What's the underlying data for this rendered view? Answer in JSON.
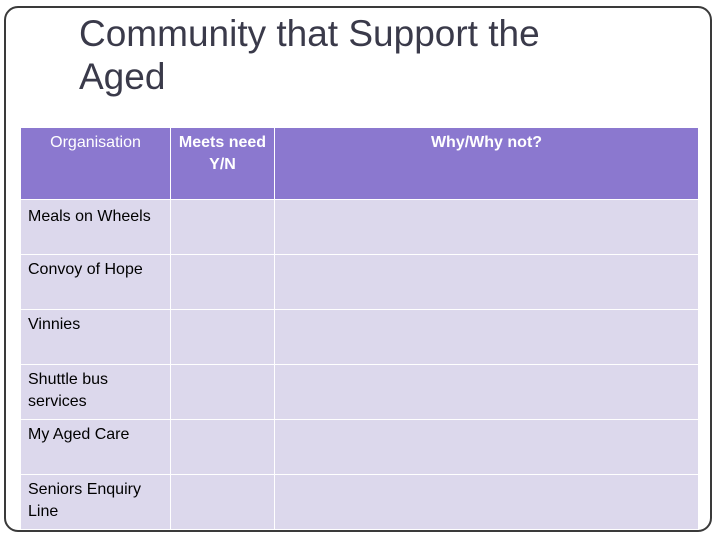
{
  "title": {
    "line1": "Community that Support the",
    "line2": "Aged"
  },
  "table": {
    "headers": [
      "Organisation",
      "Meets need Y/N",
      "Why/Why not?"
    ],
    "rows": [
      {
        "organisation": "Meals on Wheels",
        "meets_need": "",
        "why": ""
      },
      {
        "organisation": "Convoy of Hope",
        "meets_need": "",
        "why": ""
      },
      {
        "organisation": "Vinnies",
        "meets_need": "",
        "why": ""
      },
      {
        "organisation": "Shuttle bus services",
        "meets_need": "",
        "why": ""
      },
      {
        "organisation": "My Aged Care",
        "meets_need": "",
        "why": ""
      },
      {
        "organisation": "Seniors Enquiry Line",
        "meets_need": "",
        "why": ""
      }
    ]
  }
}
